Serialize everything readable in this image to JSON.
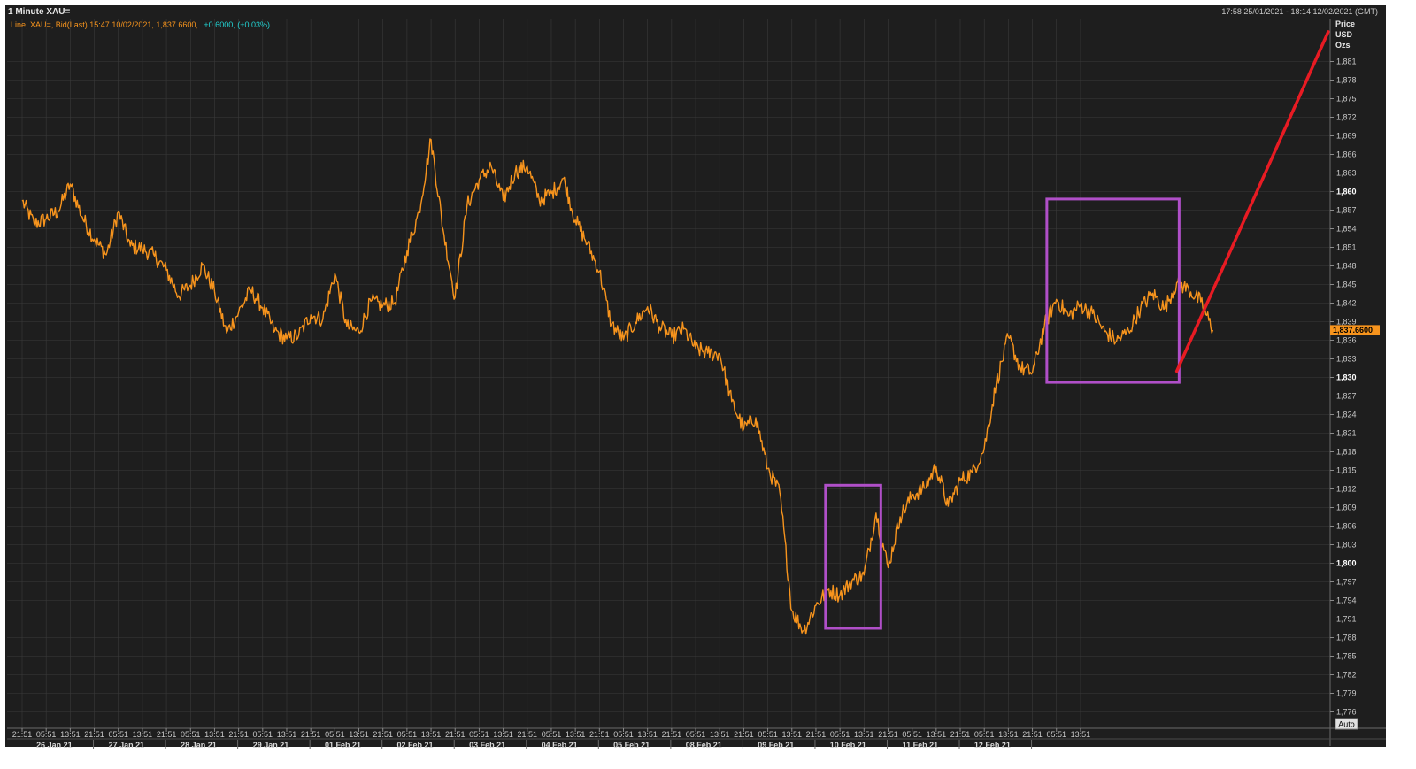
{
  "header": {
    "title": "1 Minute XAU=",
    "range": "17:58 25/01/2021 - 18:14 12/02/2021 (GMT)",
    "legend_prefix": "Line, XAU=, Bid(Last) 15:47 10/02/2021, 1,837.6600,",
    "legend_change": "+0.6000, (+0.03%)"
  },
  "axis_header": [
    "Price",
    "USD",
    "Ozs"
  ],
  "auto_button": "Auto",
  "colors": {
    "background": "#1e1e1e",
    "grid": "#3a3a3a",
    "line": "#f7941d",
    "last_price_bg": "#f7941d",
    "highlight_box": "#b04fc8",
    "arrow": "#e81b23",
    "change": "#22d3d3"
  },
  "chart_data": {
    "type": "line",
    "title": "1 Minute XAU=",
    "xlabel": "",
    "ylabel": "Price USD Ozs",
    "ylim": [
      1774,
      1884
    ],
    "grid": true,
    "y_ticks": [
      1776,
      1779,
      1782,
      1785,
      1788,
      1791,
      1794,
      1797,
      1800,
      1803,
      1806,
      1809,
      1812,
      1815,
      1818,
      1821,
      1824,
      1827,
      1830,
      1833,
      1836,
      1839,
      1842,
      1845,
      1848,
      1851,
      1854,
      1857,
      1860,
      1863,
      1866,
      1869,
      1872,
      1875,
      1878,
      1881
    ],
    "y_ticks_bold": [
      1800,
      1830,
      1860
    ],
    "y_tick_labels": [
      "1,776",
      "1,779",
      "1,782",
      "1,785",
      "1,788",
      "1,791",
      "1,794",
      "1,797",
      "1,800",
      "1,803",
      "1,806",
      "1,809",
      "1,812",
      "1,815",
      "1,818",
      "1,821",
      "1,824",
      "1,827",
      "1,830",
      "1,833",
      "1,836",
      "1,839",
      "1,842",
      "1,845",
      "1,848",
      "1,851",
      "1,854",
      "1,857",
      "1,860",
      "1,863",
      "1,866",
      "1,869",
      "1,872",
      "1,875",
      "1,878",
      "1,881"
    ],
    "last_price": 1837.66,
    "last_price_label": "1,837.6600",
    "x_time_ticks": [
      "21:51",
      "05:51",
      "13:51",
      "21:51",
      "05:51",
      "13:51",
      "21:51",
      "05:51",
      "13:51",
      "21:51",
      "05:51",
      "13:51",
      "21:51",
      "05:51",
      "13:51",
      "21:51",
      "05:51",
      "13:51",
      "21:51",
      "05:51",
      "13:51",
      "21:51",
      "05:51",
      "13:51",
      "21:51",
      "05:51",
      "13:51",
      "21:51",
      "05:51",
      "13:51",
      "21:51",
      "05:51",
      "13:51",
      "21:51",
      "05:51",
      "13:51",
      "21:51",
      "05:51",
      "13:51",
      "21:51",
      "05:51",
      "13:51",
      "21:51",
      "05:51",
      "13:51"
    ],
    "x_day_labels": [
      "26 Jan 21",
      "27 Jan 21",
      "28 Jan 21",
      "29 Jan 21",
      "01 Feb 21",
      "02 Feb 21",
      "03 Feb 21",
      "04 Feb 21",
      "05 Feb 21",
      "08 Feb 21",
      "09 Feb 21",
      "10 Feb 21",
      "11 Feb 21",
      "12 Feb 21"
    ],
    "series": [
      {
        "points": [
          [
            0,
            1858.5
          ],
          [
            0.5,
            1854.8
          ],
          [
            1,
            1855.6
          ],
          [
            1.5,
            1856.9
          ],
          [
            2,
            1861.2
          ],
          [
            2.5,
            1855.9
          ],
          [
            3,
            1852.3
          ],
          [
            3.5,
            1849.8
          ],
          [
            4,
            1856.7
          ],
          [
            4.5,
            1851.2
          ],
          [
            5,
            1850.8
          ],
          [
            5.5,
            1849.6
          ],
          [
            6,
            1847.3
          ],
          [
            6.5,
            1843.2
          ],
          [
            7,
            1844.9
          ],
          [
            7.5,
            1848.1
          ],
          [
            8,
            1843.9
          ],
          [
            8.5,
            1837.2
          ],
          [
            9,
            1840.5
          ],
          [
            9.5,
            1844.1
          ],
          [
            10,
            1841.3
          ],
          [
            10.5,
            1837.5
          ],
          [
            11,
            1836.2
          ],
          [
            11.5,
            1836.8
          ],
          [
            12,
            1840.1
          ],
          [
            12.5,
            1839.4
          ],
          [
            13,
            1846.8
          ],
          [
            13.5,
            1838.2
          ],
          [
            14,
            1837.3
          ],
          [
            14.5,
            1842.3
          ],
          [
            15,
            1841.6
          ],
          [
            15.5,
            1842.1
          ],
          [
            16,
            1850.4
          ],
          [
            16.5,
            1856.7
          ],
          [
            17,
            1868.4
          ],
          [
            17.5,
            1853.9
          ],
          [
            18,
            1842.9
          ],
          [
            18.5,
            1857.8
          ],
          [
            19,
            1861.9
          ],
          [
            19.5,
            1864.1
          ],
          [
            20,
            1858.6
          ],
          [
            20.5,
            1863.2
          ],
          [
            21,
            1864.1
          ],
          [
            21.5,
            1858.6
          ],
          [
            22,
            1859.7
          ],
          [
            22.5,
            1862.1
          ],
          [
            23,
            1855.4
          ],
          [
            23.5,
            1851.6
          ],
          [
            24,
            1847.1
          ],
          [
            24.5,
            1838.6
          ],
          [
            25,
            1836.1
          ],
          [
            25.5,
            1838.9
          ],
          [
            26,
            1841.4
          ],
          [
            26.5,
            1838.2
          ],
          [
            27,
            1836.5
          ],
          [
            27.5,
            1837.8
          ],
          [
            28,
            1834.7
          ],
          [
            28.5,
            1833.9
          ],
          [
            29,
            1833.8
          ],
          [
            29.5,
            1826.1
          ],
          [
            30,
            1821.7
          ],
          [
            30.5,
            1823.5
          ],
          [
            31,
            1815.3
          ],
          [
            31.5,
            1811.4
          ],
          [
            32,
            1792.3
          ],
          [
            32.5,
            1789.1
          ],
          [
            33,
            1793.2
          ],
          [
            33.5,
            1795.7
          ],
          [
            34,
            1794.9
          ],
          [
            34.5,
            1797.2
          ],
          [
            35,
            1798.1
          ],
          [
            35.5,
            1808.1
          ],
          [
            36,
            1799.3
          ],
          [
            36.5,
            1807.5
          ],
          [
            37,
            1810.9
          ],
          [
            37.5,
            1812.1
          ],
          [
            38,
            1815.6
          ],
          [
            38.5,
            1809.2
          ],
          [
            39,
            1813.4
          ],
          [
            39.5,
            1814.6
          ],
          [
            40,
            1818.6
          ],
          [
            40.5,
            1829.1
          ],
          [
            41,
            1836.5
          ],
          [
            41.5,
            1831.5
          ],
          [
            42,
            1830.8
          ],
          [
            42.5,
            1838.4
          ],
          [
            43,
            1842.6
          ],
          [
            43.5,
            1839.9
          ],
          [
            44,
            1841.7
          ],
          [
            44.5,
            1840.3
          ],
          [
            45,
            1837.4
          ],
          [
            45.5,
            1835.9
          ],
          [
            46,
            1837.5
          ],
          [
            46.5,
            1841.2
          ],
          [
            47,
            1843.6
          ],
          [
            47.5,
            1841.1
          ],
          [
            48,
            1845.3
          ],
          [
            48.5,
            1844.2
          ],
          [
            49,
            1842.2
          ],
          [
            49.5,
            1837.66
          ]
        ]
      }
    ],
    "annotations": [
      {
        "type": "box",
        "x0": 33.4,
        "x1": 35.7,
        "y0": 1789.5,
        "y1": 1812.6
      },
      {
        "type": "box",
        "x0": 42.6,
        "x1": 48.1,
        "y0": 1829.2,
        "y1": 1858.8
      },
      {
        "type": "arrow",
        "x0": 48.0,
        "y0": 1831.0,
        "x1": 54.3,
        "y1": 1885.8
      }
    ]
  }
}
